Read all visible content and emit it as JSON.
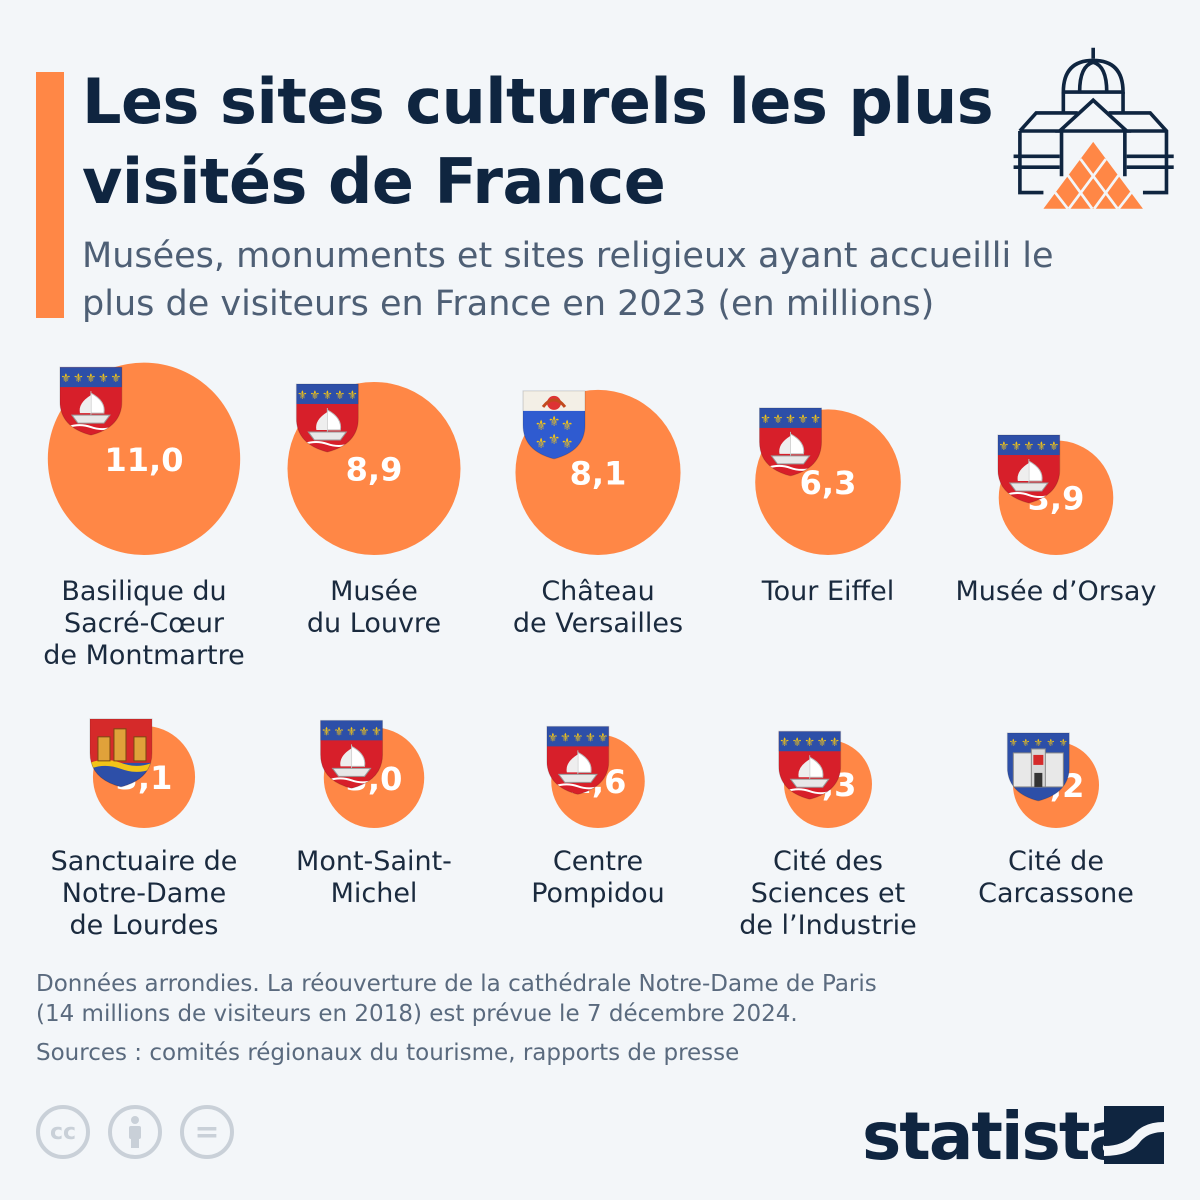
{
  "header": {
    "title": "Les sites culturels les plus visités de France",
    "subtitle": "Musées, monuments et sites religieux ayant accueilli le plus de visiteurs en France en 2023 (en millions)",
    "icon": "louvre-pyramid-icon"
  },
  "colors": {
    "accent": "#ff8746",
    "text": "#0f2540",
    "background": "#f3f6f9"
  },
  "chart_data": {
    "type": "bubble",
    "title": "Les sites culturels les plus visités de France",
    "unit": "millions de visiteurs (2023)",
    "items": [
      {
        "label": "Basilique du Sacré-Cœur de Montmartre",
        "lines": [
          "Basilique du",
          "Sacré-Cœur",
          "de Montmartre"
        ],
        "value": 11.0,
        "display": "11,0",
        "crest": "paris-crest-icon"
      },
      {
        "label": "Musée du Louvre",
        "lines": [
          "Musée",
          "du Louvre"
        ],
        "value": 8.9,
        "display": "8,9",
        "crest": "paris-crest-icon"
      },
      {
        "label": "Château de Versailles",
        "lines": [
          "Château",
          "de Versailles"
        ],
        "value": 8.1,
        "display": "8,1",
        "crest": "versailles-crest-icon"
      },
      {
        "label": "Tour Eiffel",
        "lines": [
          "Tour Eiffel"
        ],
        "value": 6.3,
        "display": "6,3",
        "crest": "paris-crest-icon"
      },
      {
        "label": "Musée d’Orsay",
        "lines": [
          "Musée d’Orsay"
        ],
        "value": 3.9,
        "display": "3,9",
        "crest": "paris-crest-icon"
      },
      {
        "label": "Sanctuaire de Notre-Dame de Lourdes",
        "lines": [
          "Sanctuaire de",
          "Notre-Dame",
          "de Lourdes"
        ],
        "value": 3.1,
        "display": "3,1",
        "crest": "lourdes-crest-icon"
      },
      {
        "label": "Mont-Saint-Michel",
        "lines": [
          "Mont-Saint-",
          "Michel"
        ],
        "value": 3.0,
        "display": "3,0",
        "crest": "paris-crest-icon"
      },
      {
        "label": "Centre Pompidou",
        "lines": [
          "Centre",
          "Pompidou"
        ],
        "value": 2.6,
        "display": "2,6",
        "crest": "paris-crest-icon"
      },
      {
        "label": "Cité des Sciences et de l’Industrie",
        "lines": [
          "Cité des",
          "Sciences et",
          "de l’Industrie"
        ],
        "value": 2.3,
        "display": "2,3",
        "crest": "paris-crest-icon"
      },
      {
        "label": "Cité de Carcassone",
        "lines": [
          "Cité de",
          "Carcassone"
        ],
        "value": 2.2,
        "display": "2,2",
        "crest": "carcassonne-crest-icon"
      }
    ]
  },
  "footer": {
    "note_line1": "Données arrondies. La réouverture de la cathédrale Notre-Dame de Paris",
    "note_line2": "(14 millions de visiteurs en 2018) est prévue le 7 décembre 2024.",
    "sources": "Sources : comités régionaux du tourisme, rapports de presse",
    "license_cc": "cc",
    "license_eq": "=",
    "brand": "statista"
  }
}
